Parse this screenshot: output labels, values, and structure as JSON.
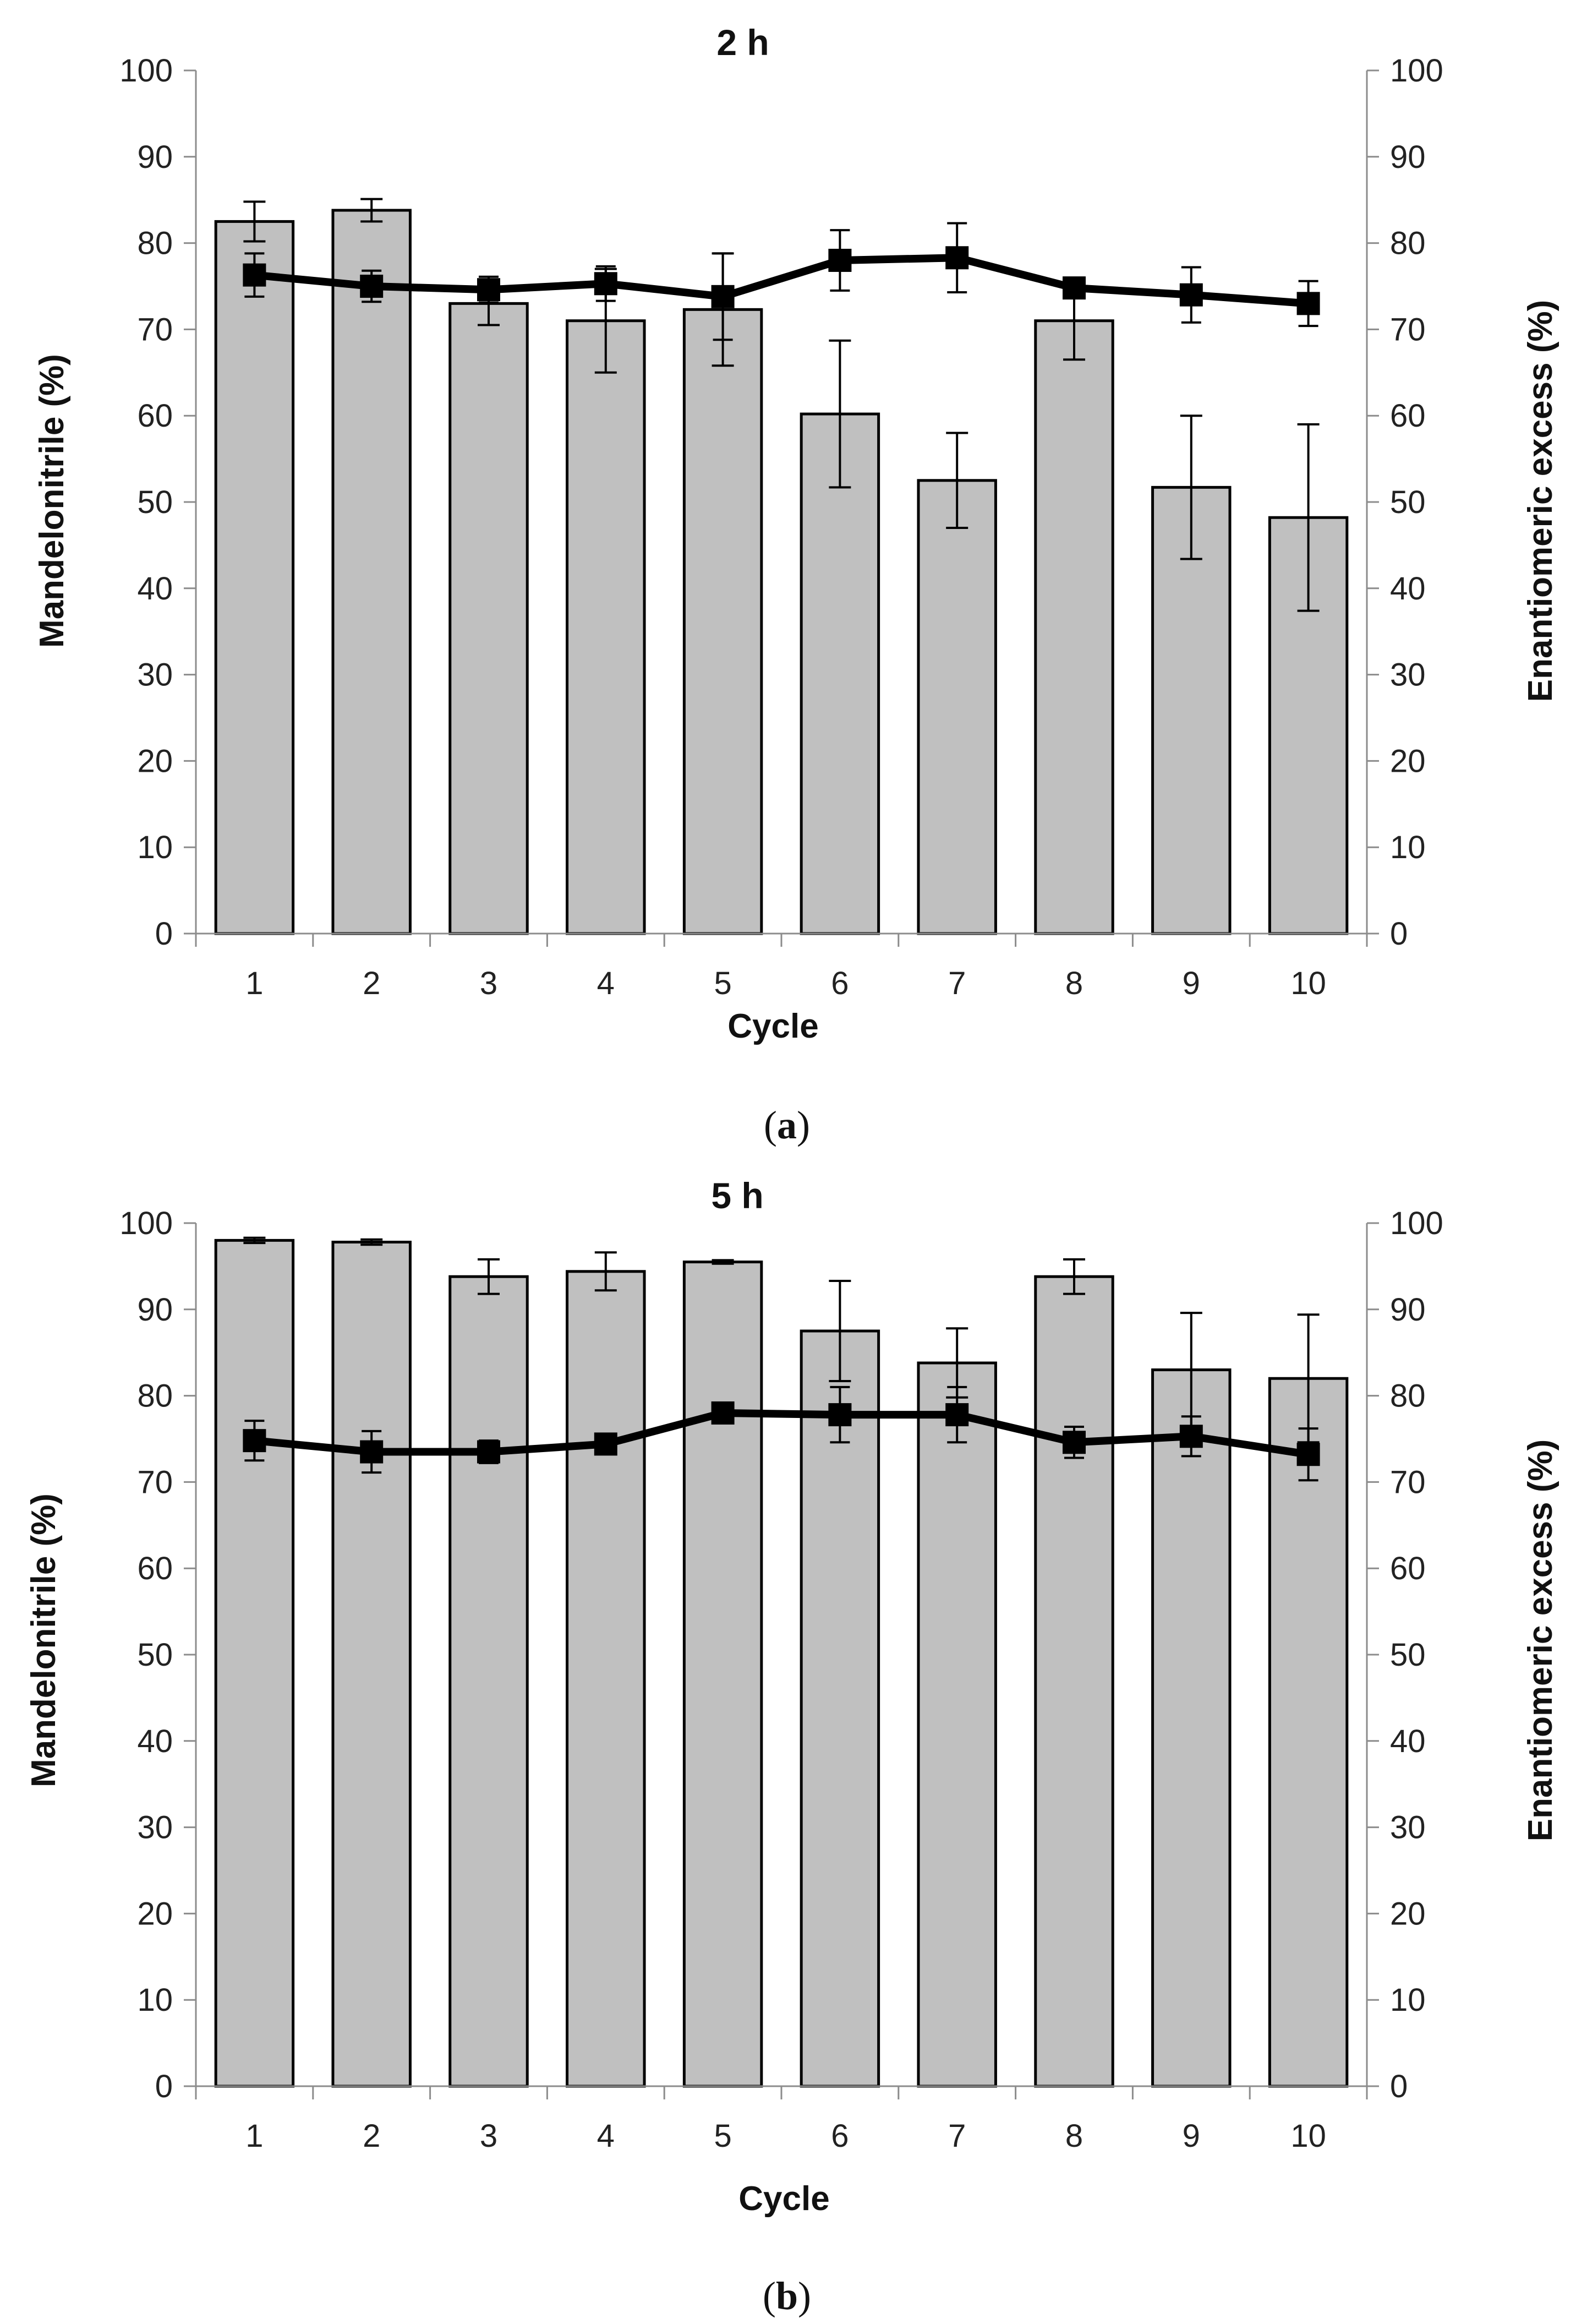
{
  "colors": {
    "bar_fill": "#c0c0c0",
    "bar_stroke": "#000000",
    "line": "#000000",
    "axis": "#8c8c8c"
  },
  "chart_data": [
    {
      "type": "bar",
      "panel_label": "a",
      "title": "2 h",
      "xlabel": "Cycle",
      "ylabel_left": "Mandelonitrile (%)",
      "ylabel_right": "Enantiomeric excess (%)",
      "ylim": [
        0,
        100
      ],
      "ytick_step": 10,
      "grid": false,
      "categories": [
        "1",
        "2",
        "3",
        "4",
        "5",
        "6",
        "7",
        "8",
        "9",
        "10"
      ],
      "series": [
        {
          "name": "Mandelonitrile",
          "kind": "bar",
          "axis": "left",
          "values": [
            82.5,
            83.8,
            73,
            71,
            72.3,
            60.2,
            52.5,
            71,
            51.7,
            48.2
          ],
          "errors": [
            2.3,
            1.3,
            2.5,
            6,
            6.5,
            8.5,
            5.5,
            4.5,
            8.3,
            10.8
          ]
        },
        {
          "name": "Enantiomeric excess",
          "kind": "line",
          "marker": "square",
          "axis": "right",
          "values": [
            76.3,
            75,
            74.6,
            75.3,
            73.8,
            78,
            78.3,
            74.8,
            74,
            73
          ],
          "errors": [
            2.5,
            1.8,
            1.5,
            2,
            5,
            3.5,
            4,
            1.2,
            3.2,
            2.6
          ]
        }
      ]
    },
    {
      "type": "bar",
      "panel_label": "b",
      "title": "5 h",
      "xlabel": "Cycle",
      "ylabel_left": "Mandelonitrile (%)",
      "ylabel_right": "Enantiomeric excess (%)",
      "ylim": [
        0,
        100
      ],
      "ytick_step": 10,
      "grid": false,
      "categories": [
        "1",
        "2",
        "3",
        "4",
        "5",
        "6",
        "7",
        "8",
        "9",
        "10"
      ],
      "series": [
        {
          "name": "Mandelonitrile",
          "kind": "bar",
          "axis": "left",
          "values": [
            98,
            97.8,
            93.8,
            94.4,
            95.5,
            87.5,
            83.8,
            93.8,
            83,
            82
          ],
          "errors": [
            0.3,
            0.3,
            2,
            2.2,
            0.2,
            5.8,
            4,
            2,
            6.6,
            7.4
          ]
        },
        {
          "name": "Enantiomeric excess",
          "kind": "line",
          "marker": "square",
          "axis": "right",
          "values": [
            74.8,
            73.5,
            73.5,
            74.4,
            78,
            77.8,
            77.8,
            74.6,
            75.3,
            73.2
          ],
          "errors": [
            2.3,
            2.4,
            1.3,
            1,
            0.5,
            3.2,
            3.2,
            1.8,
            2.3,
            3
          ]
        }
      ]
    }
  ]
}
